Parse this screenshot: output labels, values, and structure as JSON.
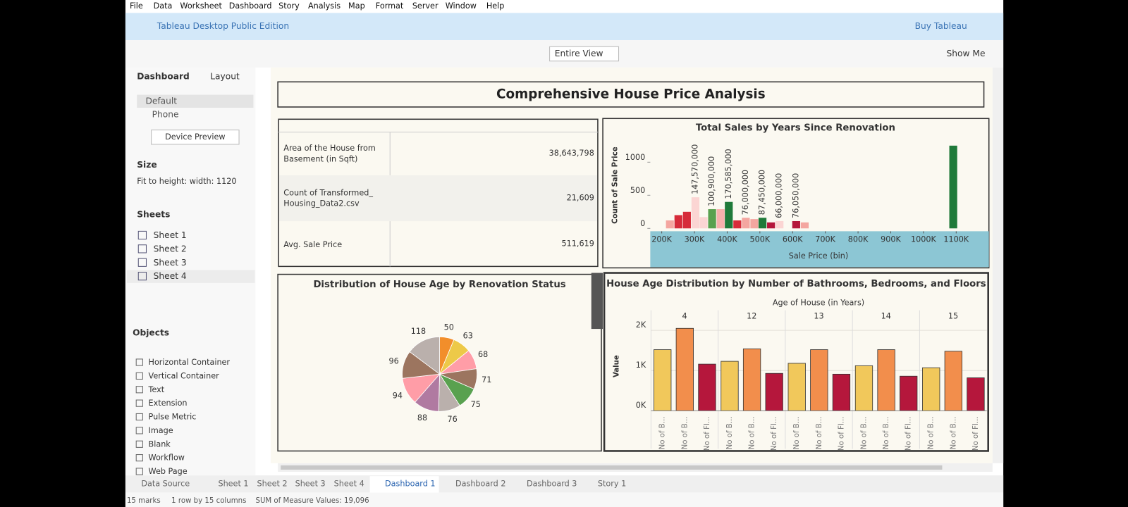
{
  "menu": [
    "File",
    "Data",
    "Worksheet",
    "Dashboard",
    "Story",
    "Analysis",
    "Map",
    "Format",
    "Server",
    "Window",
    "Help"
  ],
  "app_bar": {
    "title": "Tableau Desktop Public Edition",
    "buy": "Buy Tableau"
  },
  "toolbar": {
    "view": "Entire View",
    "show_me": "Show Me"
  },
  "sidebar": {
    "tabs": [
      "Dashboard",
      "Layout"
    ],
    "devices": [
      "Default",
      "Phone"
    ],
    "device_preview": "Device Preview",
    "size_heading": "Size",
    "size_value": "Fit to height: width: 1120",
    "sheets_heading": "Sheets",
    "sheets": [
      "Sheet 1",
      "Sheet 2",
      "Sheet 3",
      "Sheet 4"
    ],
    "objects_heading": "Objects",
    "objects": [
      "Horizontal Container",
      "Vertical Container",
      "Text",
      "Extension",
      "Pulse Metric",
      "Image",
      "Blank",
      "Workflow",
      "Web Page"
    ]
  },
  "dashboard": {
    "title": "Comprehensive House Price Analysis",
    "table": {
      "rows": [
        [
          "Area of the House from Basement (in Sqft)",
          "38,643,798"
        ],
        [
          "Count of Transformed_ Housing_Data2.csv",
          "21,609"
        ],
        [
          "Avg. Sale Price",
          "511,619"
        ]
      ]
    },
    "histogram": {
      "type": "histogram",
      "title": "Total Sales by Years Since Renovation",
      "y_label": "Count of Sale Price",
      "x_label": "Sale Price (bin)",
      "ylim": [
        0,
        1400
      ],
      "yticks": [
        0,
        500,
        1000
      ],
      "xlim": [
        165000,
        1200000
      ],
      "xticks": [
        {
          "value": 200000,
          "label": "200K"
        },
        {
          "value": 300000,
          "label": "300K"
        },
        {
          "value": 400000,
          "label": "400K"
        },
        {
          "value": 500000,
          "label": "500K"
        },
        {
          "value": 600000,
          "label": "600K"
        },
        {
          "value": 700000,
          "label": "700K"
        },
        {
          "value": 800000,
          "label": "800K"
        },
        {
          "value": 900000,
          "label": "900K"
        },
        {
          "value": 1000000,
          "label": "1000K"
        },
        {
          "value": 1100000,
          "label": "1100K"
        }
      ],
      "x": [
        225000,
        251000,
        277000,
        303000,
        328000,
        354000,
        380000,
        405000,
        431000,
        457000,
        483000,
        508000,
        534000,
        560000,
        611000,
        637000,
        1091000
      ],
      "values": [
        120,
        200,
        250,
        470,
        170,
        290,
        290,
        400,
        120,
        160,
        140,
        160,
        90,
        110,
        110,
        90,
        1250
      ],
      "value_labels": [
        null,
        null,
        null,
        "147,570,000",
        null,
        "100,900,000",
        null,
        "170,585,000",
        null,
        "76,000,000",
        null,
        "87,450,000",
        null,
        "66,000,000",
        "76,050,000",
        null,
        null
      ],
      "colors": [
        "#f4a6a0",
        "#d62c3a",
        "#d62c3a",
        "#fbd5d3",
        "#fbd5d3",
        "#59a14f",
        "#f7b0ad",
        "#1f7a3a",
        "#d62c3a",
        "#f4a6a0",
        "#f4a6a0",
        "#1f7a3a",
        "#b5173c",
        "#fbd5d3",
        "#b5173c",
        "#f4a6a0",
        "#1f7a3a"
      ]
    },
    "pie": {
      "type": "pie",
      "title": "Distribution of House Age by Renovation Status",
      "values": [
        50,
        63,
        68,
        71,
        75,
        76,
        88,
        94,
        96,
        118
      ],
      "colors": [
        "#f28e2b",
        "#edc948",
        "#ff9da7",
        "#9c755f",
        "#59a14f",
        "#bab0ac",
        "#b07aa1",
        "#ff9da7",
        "#9c755f",
        "#bab0ac"
      ]
    },
    "bars": {
      "type": "bar",
      "title": "House Age Distribution by Number of Bathrooms, Bedrooms, and Floors",
      "column_header": "Age of House (in Years)",
      "y_label": "Value",
      "categories": [
        4,
        12,
        13,
        14,
        15
      ],
      "ylim": [
        0,
        2200
      ],
      "yticks": [
        {
          "value": 0,
          "label": "0K"
        },
        {
          "value": 1000,
          "label": "1K"
        },
        {
          "value": 2000,
          "label": "2K"
        }
      ],
      "series": [
        {
          "name": "No of B...",
          "color": "#f1c85b",
          "values": [
            1520,
            1230,
            1180,
            1120,
            1070
          ]
        },
        {
          "name": "No of B...",
          "color": "#f28e4c",
          "values": [
            2050,
            1540,
            1520,
            1520,
            1480
          ]
        },
        {
          "name": "No of Fl...",
          "color": "#b5173c",
          "values": [
            1160,
            930,
            910,
            860,
            820
          ]
        }
      ]
    }
  },
  "tabs": [
    "Data Source",
    "Sheet 1",
    "Sheet 2",
    "Sheet 3",
    "Sheet 4",
    "Dashboard 1",
    "Dashboard 2",
    "Dashboard 3",
    "Story 1"
  ],
  "status": [
    "15 marks",
    "1 row by 15 columns",
    "SUM of Measure Values: 19,096"
  ]
}
